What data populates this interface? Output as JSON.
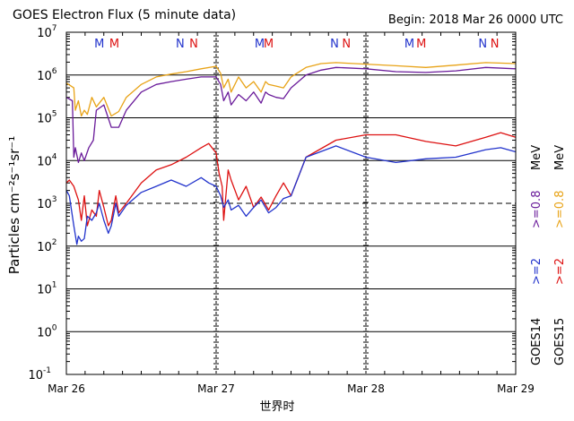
{
  "chart_data": {
    "type": "line",
    "title": "GOES Electron Flux (5 minute data)",
    "begin_label": "Begin: 2018 Mar 26 0000 UTC",
    "xlabel": "世界时",
    "ylabel": "Particles cm⁻²s⁻¹sr⁻¹",
    "x_ticks": [
      "Mar 26",
      "Mar 27",
      "Mar 28",
      "Mar 29"
    ],
    "x_range_days": [
      0,
      3
    ],
    "y_scale": "log",
    "ylim": [
      0.1,
      10000000
    ],
    "y_ticks": [
      {
        "base": "10",
        "exp": "7",
        "value": 10000000
      },
      {
        "base": "10",
        "exp": "6",
        "value": 1000000
      },
      {
        "base": "10",
        "exp": "5",
        "value": 100000
      },
      {
        "base": "10",
        "exp": "4",
        "value": 10000
      },
      {
        "base": "10",
        "exp": "3",
        "value": 1000
      },
      {
        "base": "10",
        "exp": "2",
        "value": 100
      },
      {
        "base": "10",
        "exp": "1",
        "value": 10
      },
      {
        "base": "10",
        "exp": "0",
        "value": 1
      },
      {
        "base": "10",
        "exp": "-1",
        "value": 0.1
      }
    ],
    "threshold_dashed_line": 1000,
    "markers": [
      {
        "text": "M",
        "color": "#2233cc",
        "day": 0.22
      },
      {
        "text": "M",
        "color": "#dd1111",
        "day": 0.32
      },
      {
        "text": "N",
        "color": "#2233cc",
        "day": 0.76
      },
      {
        "text": "N",
        "color": "#dd1111",
        "day": 0.85
      },
      {
        "text": "M",
        "color": "#2233cc",
        "day": 1.29
      },
      {
        "text": "M",
        "color": "#dd1111",
        "day": 1.35
      },
      {
        "text": "N",
        "color": "#2233cc",
        "day": 1.79
      },
      {
        "text": "N",
        "color": "#dd1111",
        "day": 1.87
      },
      {
        "text": "M",
        "color": "#2233cc",
        "day": 2.29
      },
      {
        "text": "M",
        "color": "#dd1111",
        "day": 2.37
      },
      {
        "text": "N",
        "color": "#2233cc",
        "day": 2.78
      },
      {
        "text": "N",
        "color": "#dd1111",
        "day": 2.86
      }
    ],
    "legend": {
      "placement": "right, rotated",
      "columns": [
        {
          "goes": "GOES14",
          "entries": [
            {
              "label": ">=2",
              "color": "#2233cc"
            },
            {
              "label": ">=0.8",
              "color": "#6a1b9a"
            }
          ]
        },
        {
          "goes": "GOES15",
          "entries": [
            {
              "label": ">=2",
              "color": "#dd1111"
            },
            {
              "label": ">=0.8",
              "color": "#e8a317"
            }
          ]
        }
      ],
      "unit": "MeV"
    },
    "series": [
      {
        "name": "GOES15 >=0.8 MeV",
        "color": "#e8a317",
        "x": [
          0,
          0.05,
          0.06,
          0.08,
          0.1,
          0.12,
          0.14,
          0.17,
          0.2,
          0.25,
          0.3,
          0.35,
          0.4,
          0.5,
          0.6,
          0.7,
          0.8,
          0.9,
          1.0,
          1.03,
          1.05,
          1.08,
          1.1,
          1.15,
          1.2,
          1.25,
          1.3,
          1.33,
          1.35,
          1.4,
          1.45,
          1.5,
          1.6,
          1.7,
          1.8,
          2.0,
          2.2,
          2.4,
          2.6,
          2.8,
          3.0
        ],
        "y": [
          650000,
          500000,
          150000,
          250000,
          110000,
          150000,
          120000,
          300000,
          180000,
          300000,
          110000,
          140000,
          300000,
          600000,
          900000,
          1050000,
          1200000,
          1400000,
          1600000,
          1100000,
          500000,
          800000,
          400000,
          900000,
          500000,
          700000,
          400000,
          700000,
          600000,
          550000,
          500000,
          900000,
          1500000,
          1850000,
          1950000,
          1800000,
          1650000,
          1500000,
          1700000,
          1950000,
          1850000
        ]
      },
      {
        "name": "GOES14 >=0.8 MeV",
        "color": "#6a1b9a",
        "x": [
          0,
          0.04,
          0.05,
          0.06,
          0.08,
          0.1,
          0.12,
          0.15,
          0.18,
          0.2,
          0.25,
          0.3,
          0.35,
          0.4,
          0.5,
          0.6,
          0.7,
          0.8,
          0.9,
          1.0,
          1.03,
          1.05,
          1.08,
          1.1,
          1.15,
          1.2,
          1.25,
          1.3,
          1.33,
          1.35,
          1.4,
          1.45,
          1.5,
          1.6,
          1.7,
          1.8,
          2.0,
          2.2,
          2.4,
          2.6,
          2.8,
          3.0
        ],
        "y": [
          300000,
          250000,
          12000,
          20000,
          9000,
          15000,
          10000,
          20000,
          30000,
          150000,
          200000,
          60000,
          60000,
          150000,
          400000,
          600000,
          700000,
          800000,
          900000,
          900000,
          600000,
          250000,
          400000,
          200000,
          350000,
          250000,
          400000,
          220000,
          400000,
          350000,
          300000,
          280000,
          500000,
          1000000,
          1300000,
          1500000,
          1400000,
          1200000,
          1150000,
          1250000,
          1500000,
          1400000
        ]
      },
      {
        "name": "GOES15 >=2 MeV",
        "color": "#dd1111",
        "x": [
          0,
          0.02,
          0.05,
          0.08,
          0.1,
          0.12,
          0.14,
          0.17,
          0.2,
          0.22,
          0.25,
          0.28,
          0.3,
          0.33,
          0.35,
          0.4,
          0.5,
          0.6,
          0.7,
          0.8,
          0.9,
          0.95,
          1.0,
          1.02,
          1.04,
          1.05,
          1.08,
          1.1,
          1.15,
          1.2,
          1.25,
          1.3,
          1.35,
          1.4,
          1.45,
          1.5,
          1.6,
          1.8,
          2.0,
          2.2,
          2.4,
          2.6,
          2.8,
          2.9,
          3.0
        ],
        "y": [
          3000,
          3500,
          2500,
          1200,
          400,
          1500,
          300,
          700,
          500,
          2000,
          800,
          300,
          400,
          1500,
          600,
          1000,
          3000,
          6000,
          8000,
          12000,
          20000,
          25000,
          15000,
          5000,
          2500,
          400,
          6000,
          3500,
          1200,
          2500,
          800,
          1400,
          700,
          1500,
          3000,
          1500,
          12000,
          30000,
          40000,
          40000,
          28000,
          22000,
          35000,
          45000,
          35000
        ]
      },
      {
        "name": "GOES14 >=2 MeV",
        "color": "#2233cc",
        "x": [
          0,
          0.02,
          0.05,
          0.07,
          0.08,
          0.1,
          0.12,
          0.14,
          0.17,
          0.2,
          0.22,
          0.25,
          0.28,
          0.3,
          0.33,
          0.35,
          0.4,
          0.5,
          0.6,
          0.7,
          0.8,
          0.9,
          0.95,
          1.0,
          1.03,
          1.05,
          1.08,
          1.1,
          1.15,
          1.2,
          1.25,
          1.3,
          1.35,
          1.4,
          1.45,
          1.5,
          1.6,
          1.8,
          2.0,
          2.2,
          2.4,
          2.6,
          2.8,
          2.9,
          3.0
        ],
        "y": [
          2000,
          1500,
          300,
          110,
          170,
          130,
          150,
          500,
          400,
          600,
          1000,
          400,
          200,
          300,
          1000,
          500,
          900,
          1800,
          2500,
          3500,
          2500,
          4000,
          3000,
          2500,
          1500,
          800,
          1200,
          700,
          900,
          500,
          800,
          1200,
          600,
          800,
          1300,
          1500,
          12000,
          22000,
          12000,
          9000,
          11000,
          12000,
          18000,
          20000,
          16000
        ]
      }
    ]
  }
}
